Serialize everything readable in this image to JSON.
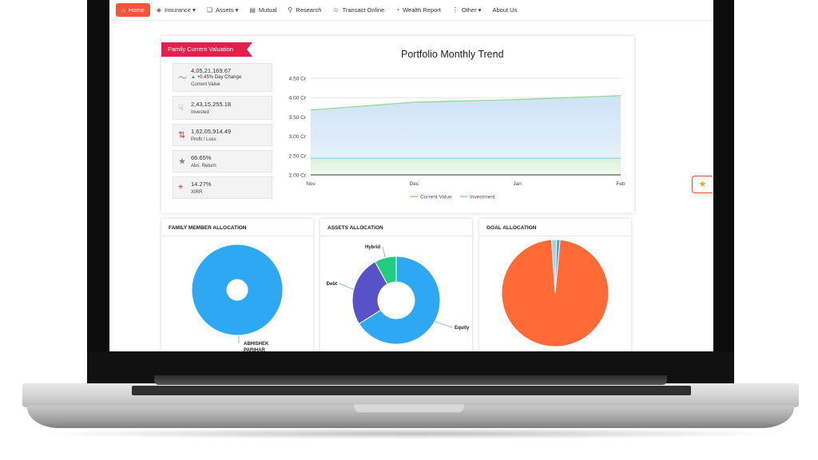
{
  "nav": {
    "items": [
      {
        "label": "Home",
        "icon": "home-icon"
      },
      {
        "label": "Insurance ▾",
        "icon": "shield-icon"
      },
      {
        "label": "Assets ▾",
        "icon": "assets-icon"
      },
      {
        "label": "Mutual",
        "icon": "chart-icon"
      },
      {
        "label": "Research",
        "icon": "research-icon"
      },
      {
        "label": "Transact Online",
        "icon": "transact-icon"
      },
      {
        "label": "Wealth Report",
        "icon": "report-icon"
      },
      {
        "label": "Other ▾",
        "icon": "more-icon"
      },
      {
        "label": "About Us",
        "icon": ""
      }
    ]
  },
  "valuation": {
    "title": "Family Current Valuation",
    "current_value": "4,05,21,169.67",
    "day_change": "+0.45% Day Change",
    "current_value_label": "Current Value",
    "invested": "2,43,15,255.18",
    "invested_label": "Invested",
    "profit_loss": "1,62,05,914.49",
    "profit_loss_label": "Profit / Loss",
    "abs_return": "66.65%",
    "abs_return_label": "Abs. Return",
    "xirr": "14.27%",
    "xirr_label": "XIRR"
  },
  "chart_data": [
    {
      "type": "area",
      "title": "Portfolio Monthly Trend",
      "categories": [
        "Nov",
        "Dec",
        "Jan",
        "Feb"
      ],
      "y_ticks": [
        "4.50 Cr",
        "4.00 Cr",
        "3.50 Cr",
        "3.00 Cr",
        "2.50 Cr",
        "2.00 Cr"
      ],
      "ylim": [
        2.0,
        4.5
      ],
      "unit": "Cr",
      "series": [
        {
          "name": "Current Value",
          "values": [
            3.68,
            3.88,
            3.95,
            4.05
          ],
          "color": "#8ed68e"
        },
        {
          "name": "Investment",
          "values": [
            2.43,
            2.43,
            2.43,
            2.43
          ],
          "color": "#7fd3e6"
        }
      ],
      "legend": "bottom",
      "grid": true
    },
    {
      "type": "pie",
      "title": "FAMILY MEMBER ALLOCATION",
      "categories": [
        "ABHISHEK PARIHAR"
      ],
      "values": [
        100
      ],
      "colors": [
        "#2ea8f2"
      ]
    },
    {
      "type": "pie",
      "title": "ASSETS ALLOCATION",
      "categories": [
        "Equity",
        "Debt",
        "Hybrid"
      ],
      "values": [
        66,
        26,
        8
      ],
      "colors": [
        "#2ea8f2",
        "#5852c9",
        "#22cc7d"
      ]
    },
    {
      "type": "pie",
      "title": "GOAL ALLOCATION",
      "categories": [
        "",
        "",
        ""
      ],
      "values": [
        97.5,
        1.5,
        1.0
      ],
      "colors": [
        "#ff6a36",
        "#b8c8d8",
        "#2ea8f2"
      ]
    }
  ],
  "panels": {
    "family_title": "FAMILY MEMBER ALLOCATION",
    "family_label_line1": "ABHISHEK",
    "family_label_line2": "PARIHAR",
    "assets_title": "ASSETS ALLOCATION",
    "goal_title": "GOAL ALLOCATION"
  },
  "colors": {
    "accent": "#f0573a",
    "ribbon": "#e0204d"
  }
}
